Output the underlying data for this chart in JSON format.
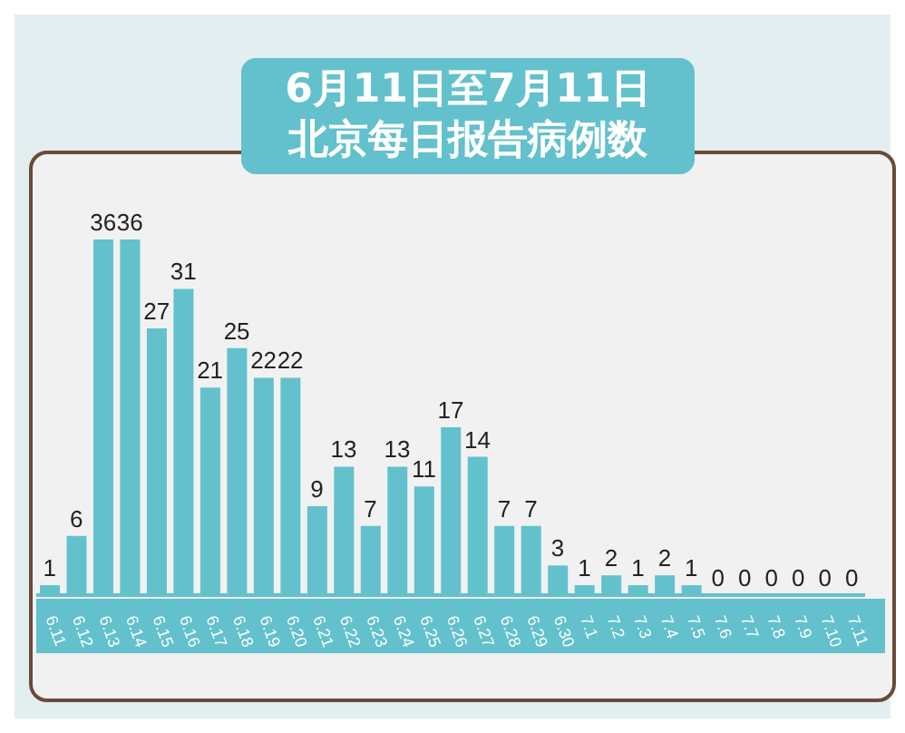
{
  "chart_data": {
    "type": "bar",
    "title": "6月11日至7月11日",
    "subtitle": "北京每日报告病例数",
    "categories": [
      "6.11",
      "6.12",
      "6.13",
      "6.14",
      "6.15",
      "6.16",
      "6.17",
      "6.18",
      "6.19",
      "6.20",
      "6.21",
      "6.22",
      "6.23",
      "6.24",
      "6.25",
      "6.26",
      "6.27",
      "6.28",
      "6.29",
      "6.30",
      "7.1",
      "7.2",
      "7.3",
      "7.4",
      "7.5",
      "7.6",
      "7.7",
      "7.8",
      "7.9",
      "7.10",
      "7.11"
    ],
    "values": [
      1,
      6,
      36,
      36,
      27,
      31,
      21,
      25,
      22,
      22,
      9,
      13,
      7,
      13,
      11,
      17,
      14,
      7,
      7,
      3,
      1,
      2,
      1,
      2,
      1,
      0,
      0,
      0,
      0,
      0,
      0
    ],
    "color": "#62c1cc",
    "data_labels": true,
    "grid": false,
    "legend": false
  }
}
